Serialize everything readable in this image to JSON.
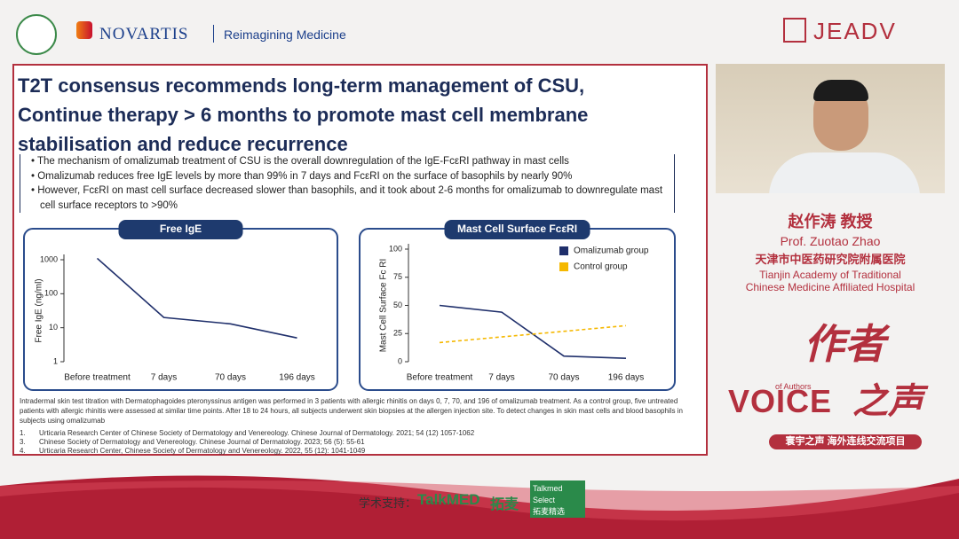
{
  "header": {
    "novartis": "NOVARTIS",
    "tagline": "Reimagining Medicine",
    "jeadv": "JEADV"
  },
  "slide": {
    "title_lines": [
      "T2T consensus recommends long-term management of CSU,",
      "Continue therapy > 6 months to promote mast cell membrane",
      "stabilisation and reduce recurrence"
    ],
    "bullets": [
      "The mechanism of omalizumab treatment of CSU is the overall downregulation of the IgE-FcεRI pathway in mast cells",
      "Omalizumab reduces free IgE levels by more than 99% in 7 days and FcεRI on the surface of basophils by nearly 90%",
      "However, FcεRI on mast cell surface decreased slower than basophils, and it took about 2-6 months for omalizumab to downregulate mast cell surface receptors to >90%"
    ],
    "footnote": "Intradermal skin test titration with Dermatophagoides pteronyssinus antigen was performed in 3 patients with allergic rhinitis on days 0, 7, 70, and 196 of omalizumab treatment. As a control group, five untreated patients with allergic rhinitis were assessed at similar time points. After 18 to 24 hours, all subjects underwent skin biopsies at the allergen injection site. To detect changes in skin mast cells and blood basophils in subjects using omalizumab",
    "references": [
      {
        "num": "1.",
        "text": "Urticaria Research Center of Chinese Society of Dermatology and Venereology. Chinese Journal of Dermatology. 2021; 54 (12) 1057-1062"
      },
      {
        "num": "3.",
        "text": "Chinese Society of Dermatology and Venereology. Chinese Journal of Dermatology. 2023; 56 (5): 55-61"
      },
      {
        "num": "4.",
        "text": "Urticaria Research Center, Chinese Society of Dermatology and Venereology. 2022, 55 (12): 1041-1049"
      }
    ]
  },
  "chart_data": [
    {
      "type": "line",
      "title": "Free IgE",
      "y_label": "Free IgE (ng/ml)",
      "categories": [
        "Before treatment",
        "7 days",
        "70 days",
        "196 days"
      ],
      "series": [
        {
          "name": "Omalizumab group",
          "color": "#1f2f6b",
          "values": [
            1100,
            20,
            13,
            5
          ]
        }
      ],
      "log_scale": true,
      "ylim": [
        1,
        1000
      ],
      "yticks": [
        1,
        10,
        100,
        1000
      ],
      "legend": false
    },
    {
      "type": "line",
      "title": "Mast Cell Surface FcεRI",
      "y_label": "Mast Cell Surface Fc RI",
      "categories": [
        "Before treatment",
        "7 days",
        "70 days",
        "196 days"
      ],
      "series": [
        {
          "name": "Omalizumab group",
          "color": "#1f2f6b",
          "values": [
            50,
            44,
            5,
            3
          ]
        },
        {
          "name": "Control group",
          "color": "#f5b800",
          "dashed": true,
          "values": [
            17,
            22,
            27,
            32
          ]
        }
      ],
      "log_scale": false,
      "ylim": [
        0,
        100
      ],
      "yticks": [
        0,
        25,
        50,
        75,
        100
      ],
      "legend": "top-right"
    }
  ],
  "speaker": {
    "name_cn": "赵作涛 教授",
    "name_en": "Prof. Zuotao Zhao",
    "org_cn": "天津市中医药研究院附属医院",
    "org_en_lines": [
      "Tianjin Academy of Traditional",
      "Chinese Medicine Affiliated Hospital"
    ]
  },
  "brand": {
    "zuozhe": "作者",
    "zhisheng": "之声",
    "voice": "VOICE",
    "of_authors": "of Authors",
    "huanyu": "寰宇之声",
    "project": "海外连线交流项目"
  },
  "footer": {
    "support": "学术支持：",
    "talkmed": "TalkMED",
    "tuomai": "拓麦",
    "select": "Talkmed Select",
    "select_cn": "拓麦精选"
  }
}
